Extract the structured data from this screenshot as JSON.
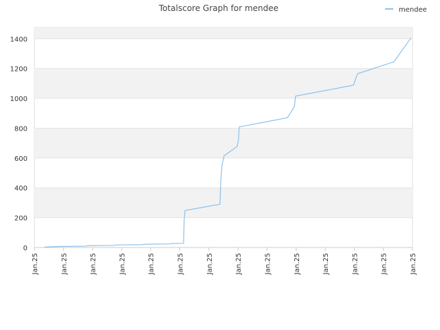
{
  "chart_data": {
    "type": "line",
    "title": "Totalscore Graph for mendee",
    "x": [
      0.35,
      0.87,
      1.77,
      1.84,
      2.74,
      2.79,
      3.71,
      3.78,
      4.68,
      4.73,
      5.13,
      5.15,
      5.18,
      6.38,
      6.41,
      6.45,
      6.52,
      6.97,
      7.02,
      7.04,
      8.7,
      8.94,
      8.98,
      10.97,
      11.11,
      12.36,
      12.95
    ],
    "series": [
      {
        "name": "mendee",
        "color": "#8cc0ea",
        "values": [
          3,
          7,
          9,
          12,
          14,
          17,
          19,
          22,
          24,
          27,
          28,
          185,
          248,
          290,
          450,
          550,
          615,
          677,
          725,
          808,
          870,
          945,
          1015,
          1088,
          1165,
          1245,
          1405
        ]
      }
    ],
    "xlim": [
      0,
      13
    ],
    "xticks": [
      {
        "value": 0,
        "label": "Jan.25"
      },
      {
        "value": 1,
        "label": "Jan.25"
      },
      {
        "value": 2,
        "label": "Jan.25"
      },
      {
        "value": 3,
        "label": "Jan.25"
      },
      {
        "value": 4,
        "label": "Jan.25"
      },
      {
        "value": 5,
        "label": "Jan.25"
      },
      {
        "value": 6,
        "label": "Jan.25"
      },
      {
        "value": 7,
        "label": "Jan.25"
      },
      {
        "value": 8,
        "label": "Jan.25"
      },
      {
        "value": 9,
        "label": "Jan.25"
      },
      {
        "value": 10,
        "label": "Jan.25"
      },
      {
        "value": 11,
        "label": "Jan.25"
      },
      {
        "value": 12,
        "label": "Jan.25"
      },
      {
        "value": 13,
        "label": "Jan.25"
      }
    ],
    "ylim": [
      0,
      1475
    ],
    "yticks": [
      0,
      200,
      400,
      600,
      800,
      1000,
      1200,
      1400
    ],
    "grid": true,
    "legend": "top-right"
  }
}
